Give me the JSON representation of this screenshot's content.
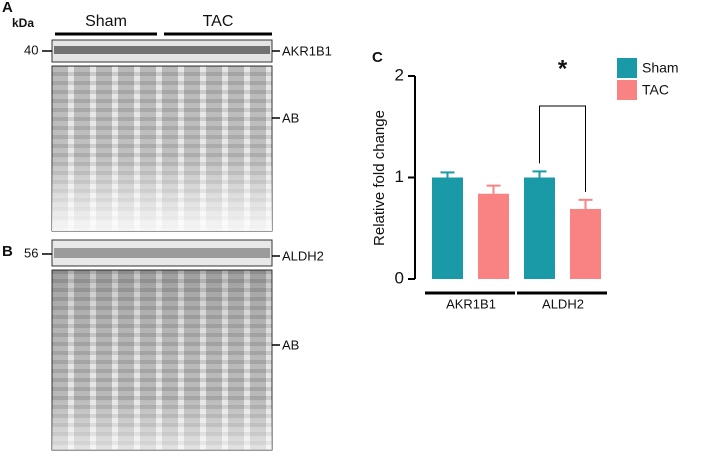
{
  "blots": {
    "panel_a": "A",
    "unit": "kDa",
    "group_sham": "Sham",
    "group_tac": "TAC",
    "marker_a": "40",
    "band_a": "AKR1B1",
    "stain_a": "AB",
    "panel_b": "B",
    "marker_b": "56",
    "band_b": "ALDH2",
    "stain_b": "AB"
  },
  "chart_data": {
    "type": "bar",
    "panel": "C",
    "ylabel": "Relative fold change",
    "categories": [
      "AKR1B1",
      "ALDH2"
    ],
    "series": [
      {
        "name": "Sham",
        "color": "#1a9aa6",
        "values": [
          1.0,
          1.0
        ],
        "errors": [
          0.05,
          0.06
        ]
      },
      {
        "name": "TAC",
        "color": "#f98383",
        "values": [
          0.84,
          0.69
        ],
        "errors": [
          0.08,
          0.09
        ]
      }
    ],
    "ylim": [
      0,
      2
    ],
    "yticks": [
      0,
      1,
      2
    ],
    "annotation": "*"
  }
}
